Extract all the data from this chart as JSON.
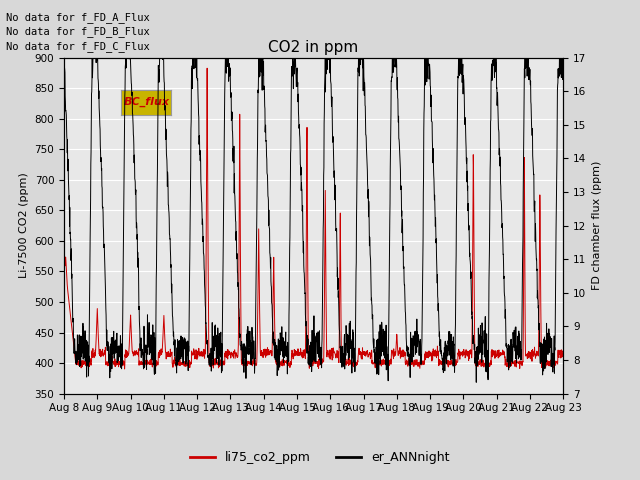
{
  "title": "CO2 in ppm",
  "ylabel_left": "Li-7500 CO2 (ppm)",
  "ylabel_right": "FD chamber flux (ppm)",
  "ylim_left": [
    350,
    900
  ],
  "ylim_right": [
    7.0,
    17.0
  ],
  "yticks_left": [
    350,
    400,
    450,
    500,
    550,
    600,
    650,
    700,
    750,
    800,
    850,
    900
  ],
  "yticks_right": [
    7.0,
    8.0,
    9.0,
    10.0,
    11.0,
    12.0,
    13.0,
    14.0,
    15.0,
    16.0,
    17.0
  ],
  "xticklabels": [
    "Aug 8",
    "Aug 9",
    "Aug 10",
    "Aug 11",
    "Aug 12",
    "Aug 13",
    "Aug 14",
    "Aug 15",
    "Aug 16",
    "Aug 17",
    "Aug 18",
    "Aug 19",
    "Aug 20",
    "Aug 21",
    "Aug 22",
    "Aug 23"
  ],
  "annotations": [
    "No data for f_FD_A_Flux",
    "No data for f_FD_B_Flux",
    "No data for f_FD_C_Flux"
  ],
  "legend_box_label": "BC_flux",
  "legend_box_color": "#c8b400",
  "legend_box_text_color": "#cc0000",
  "line1_color": "#cc0000",
  "line1_label": "li75_co2_ppm",
  "line2_color": "#000000",
  "line2_label": "er_ANNnight",
  "background_color": "#d8d8d8",
  "plot_bg_color": "#e8e8e8",
  "grid_color": "#ffffff",
  "title_fontsize": 11,
  "label_fontsize": 8,
  "tick_fontsize": 7.5
}
